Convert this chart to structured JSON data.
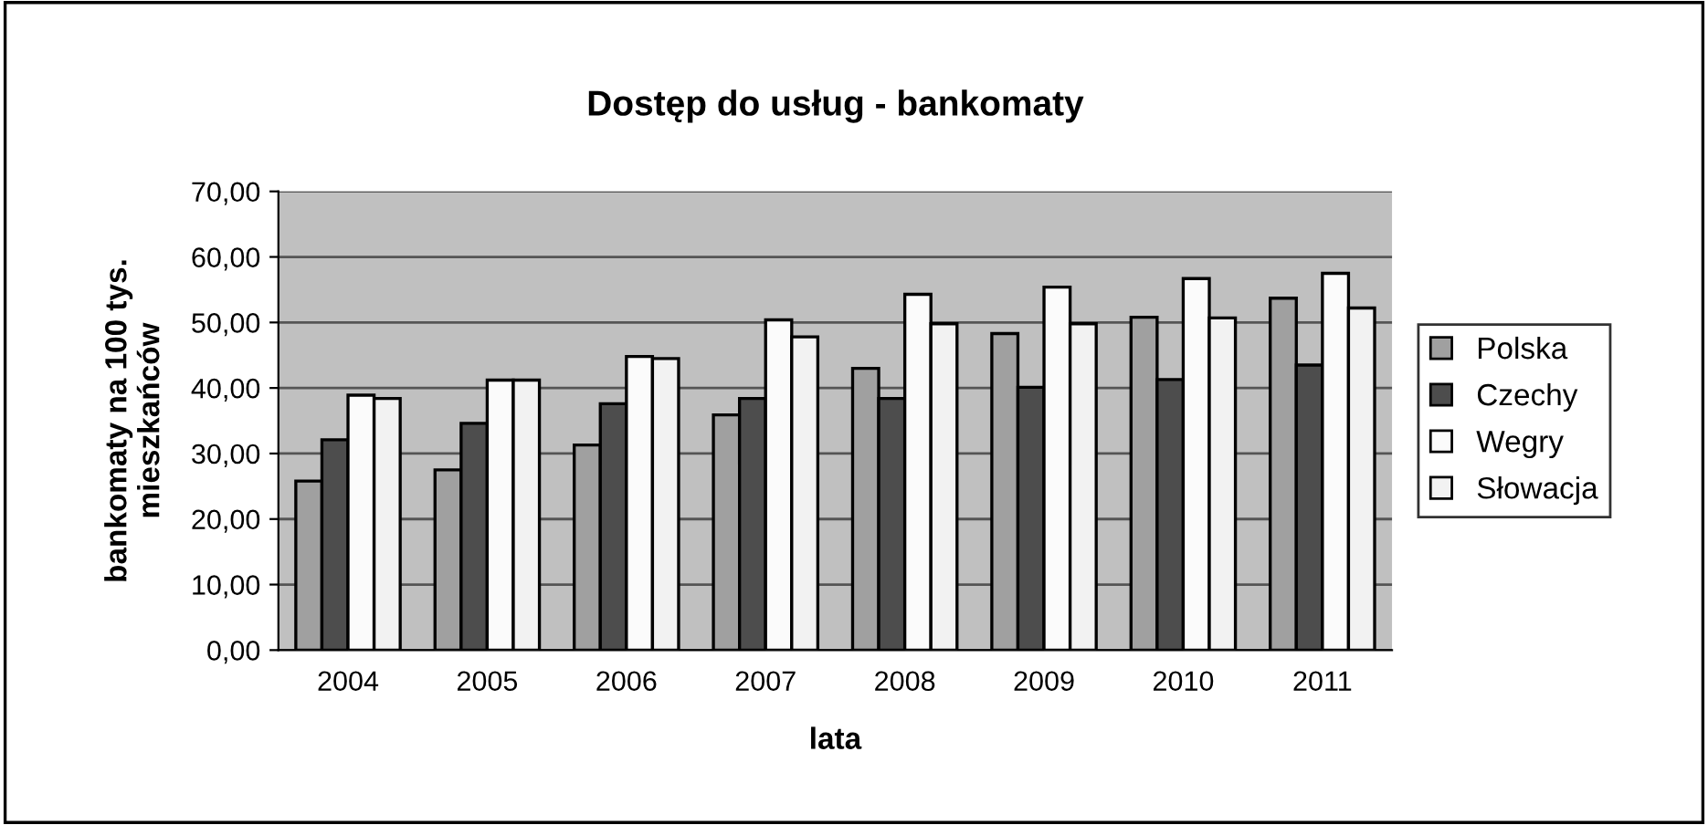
{
  "chart_data": {
    "type": "bar",
    "title": "Dostęp do usług - bankomaty",
    "xlabel": "lata",
    "ylabel": "bankomaty na 100 tys.\nmieszkańców",
    "categories": [
      "2004",
      "2005",
      "2006",
      "2007",
      "2008",
      "2009",
      "2010",
      "2011"
    ],
    "series": [
      {
        "name": "Polska",
        "color": "#a0a0a0",
        "values": [
          25.8,
          27.5,
          31.3,
          35.9,
          43.0,
          48.3,
          50.8,
          53.7
        ]
      },
      {
        "name": "Czechy",
        "color": "#4d4d4d",
        "values": [
          32.1,
          34.6,
          37.6,
          38.4,
          38.4,
          40.1,
          41.3,
          43.5
        ]
      },
      {
        "name": "Wegry",
        "color": "#fbfbfb",
        "values": [
          38.9,
          41.2,
          44.8,
          50.4,
          54.3,
          55.4,
          56.7,
          57.5
        ]
      },
      {
        "name": "Słowacja",
        "color": "#f2f2f2",
        "values": [
          38.4,
          41.2,
          44.5,
          47.8,
          49.8,
          49.8,
          50.7,
          52.2
        ]
      }
    ],
    "ylim": [
      0,
      70
    ],
    "yticks": [
      {
        "value": 0,
        "label": "0,00"
      },
      {
        "value": 10,
        "label": "10,00"
      },
      {
        "value": 20,
        "label": "20,00"
      },
      {
        "value": 30,
        "label": "30,00"
      },
      {
        "value": 40,
        "label": "40,00"
      },
      {
        "value": 50,
        "label": "50,00"
      },
      {
        "value": 60,
        "label": "60,00"
      },
      {
        "value": 70,
        "label": "70,00"
      }
    ],
    "grid": "y",
    "legend": "right"
  }
}
